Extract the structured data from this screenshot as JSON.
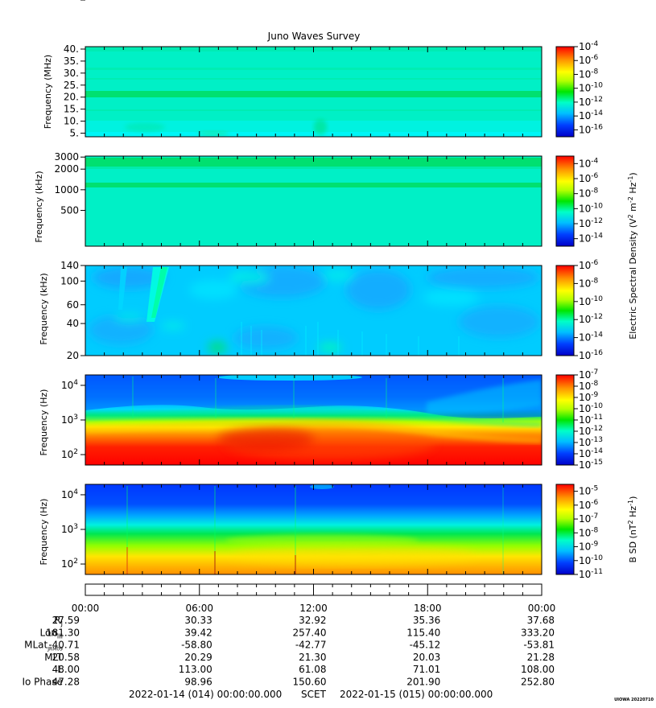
{
  "chart_data": [
    {
      "type": "heatmap",
      "title": "Juno Waves Survey",
      "ylabel": "Frequency (MHz)",
      "ylim": [
        3.5,
        41
      ],
      "yscale": "linear",
      "yticks": [
        "40.",
        "35.",
        "30.",
        "25.",
        "20.",
        "15.",
        "10.",
        "5."
      ],
      "ytick_values": [
        40,
        35,
        30,
        25,
        20,
        15,
        10,
        5
      ],
      "colorbar": {
        "scale": "log",
        "range_exponent": [
          -17,
          -4
        ],
        "labels": [
          "10-4",
          "10-6",
          "10-8",
          "10-10",
          "10-12",
          "10-14",
          "10-16"
        ],
        "exponents": [
          -4,
          -6,
          -8,
          -10,
          -12,
          -14,
          -16
        ]
      },
      "background_level": "10-13.5",
      "bands": [
        {
          "value": 21,
          "level": "10-12"
        }
      ]
    },
    {
      "type": "heatmap",
      "ylabel": "Frequency (kHz)",
      "ylim": [
        150,
        3100
      ],
      "yscale": "log",
      "yticks": [
        "3000",
        "2000",
        "1000",
        "500"
      ],
      "ytick_values": [
        3000,
        2000,
        1000,
        500
      ],
      "colorbar": {
        "scale": "log",
        "range_exponent": [
          -15,
          -3
        ],
        "labels": [
          "10-4",
          "10-6",
          "10-8",
          "10-10",
          "10-12",
          "10-14"
        ],
        "exponents": [
          -4,
          -6,
          -8,
          -10,
          -12,
          -14
        ]
      },
      "background_level": "10-12.5",
      "bands": [
        {
          "value_range": [
            2100,
            2600
          ],
          "level": "10-11"
        },
        {
          "value": 1150,
          "level": "10-11"
        }
      ]
    },
    {
      "type": "heatmap",
      "ylabel": "Frequency (kHz)",
      "ylim": [
        20,
        140
      ],
      "yscale": "log",
      "yticks": [
        "140",
        "100",
        "60",
        "40",
        "20"
      ],
      "ytick_values": [
        140,
        100,
        60,
        40,
        20
      ],
      "colorbar": {
        "scale": "log",
        "range_exponent": [
          -16,
          -6
        ],
        "labels": [
          "10-6",
          "10-8",
          "10-10",
          "10-12",
          "10-14",
          "10-16"
        ],
        "exponents": [
          -6,
          -8,
          -10,
          -12,
          -14,
          -16
        ]
      },
      "background_level": "10-13.5"
    },
    {
      "type": "heatmap",
      "ylabel": "Frequency (Hz)",
      "ylim": [
        50,
        20000
      ],
      "yscale": "log",
      "yticks": [
        "104",
        "103",
        "102"
      ],
      "ytick_values": [
        10000,
        1000,
        100
      ],
      "colorbar": {
        "scale": "log",
        "range_exponent": [
          -15,
          -7
        ],
        "labels": [
          "10-7",
          "10-8",
          "10-9",
          "10-10",
          "10-11",
          "10-12",
          "10-13",
          "10-14",
          "10-15"
        ],
        "exponents": [
          -7,
          -8,
          -9,
          -10,
          -11,
          -12,
          -13,
          -14,
          -15
        ]
      }
    },
    {
      "type": "heatmap",
      "ylabel": "Frequency (Hz)",
      "ylim": [
        50,
        20000
      ],
      "yscale": "log",
      "yticks": [
        "104",
        "103",
        "102"
      ],
      "ytick_values": [
        10000,
        1000,
        100
      ],
      "colorbar": {
        "scale": "log",
        "range_exponent": [
          -11,
          -4.5
        ],
        "labels": [
          "10-5",
          "10-6",
          "10-7",
          "10-8",
          "10-9",
          "10-10",
          "10-11"
        ],
        "exponents": [
          -5,
          -6,
          -7,
          -8,
          -9,
          -10,
          -11
        ]
      }
    }
  ],
  "colorbar_labels": {
    "electric_prefix": "Electric Spectral Density (V",
    "electric_mid": " m",
    "electric_mid2": " Hz",
    "electric_suffix": ")",
    "magnetic_prefix": "B SD (nT",
    "magnetic_mid": " Hz",
    "magnetic_suffix": ")",
    "sup_2": "2",
    "sup_minus2": "-2",
    "sup_minus1": "-1"
  },
  "time_axis": {
    "range_hours": [
      0,
      24
    ],
    "ticks": [
      "00:00",
      "06:00",
      "12:00",
      "18:00",
      "00:00"
    ],
    "tick_hours": [
      0,
      6,
      12,
      18,
      24
    ]
  },
  "ephemeris": [
    {
      "label": "R",
      "sub": "J",
      "values": [
        "27.59",
        "30.33",
        "32.92",
        "35.36",
        "37.68"
      ]
    },
    {
      "label": "Lon",
      "sub": "III",
      "values": [
        "181.30",
        "39.42",
        "257.40",
        "115.40",
        "333.20"
      ]
    },
    {
      "label": "MLat",
      "sub": "JRM09",
      "values": [
        "-40.71",
        "-58.80",
        "-42.77",
        "-45.12",
        "-53.81"
      ]
    },
    {
      "label": "MLT",
      "sub": "",
      "values": [
        "20.58",
        "20.29",
        "21.30",
        "20.03",
        "21.28"
      ]
    },
    {
      "label": "L",
      "sub": "",
      "values": [
        "48.00",
        "113.00",
        "61.08",
        "71.01",
        "108.00"
      ]
    },
    {
      "label": "Io Phase",
      "sub": "",
      "values": [
        "47.28",
        "98.96",
        "150.60",
        "201.90",
        "252.80"
      ]
    }
  ],
  "footer": {
    "start": "2022-01-14 (014) 00:00:00.000",
    "scet": "SCET",
    "end": "2022-01-15 (015) 00:00:00.000",
    "tag": "UIOWA 20220710"
  }
}
